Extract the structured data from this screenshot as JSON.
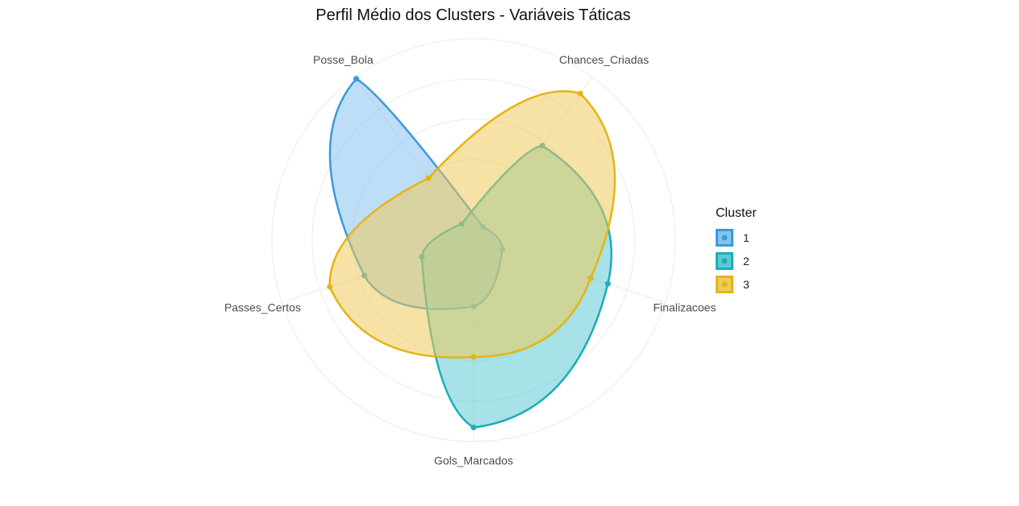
{
  "chart_data": {
    "type": "radar",
    "title": "Perfil Médio dos Clusters - Variáveis Táticas",
    "axes": [
      "Posse_Bola",
      "Chances_Criadas",
      "Finalizacoes",
      "Gols_Marcados",
      "Passes_Certos"
    ],
    "grid": true,
    "rlim": [
      0,
      1
    ],
    "legend": {
      "title": "Cluster",
      "position": "right"
    },
    "series": [
      {
        "name": "1",
        "color": "#3A9AD9",
        "fill": "#87C3EE",
        "values": [
          0.99,
          0.08,
          0.15,
          0.33,
          0.57
        ]
      },
      {
        "name": "2",
        "color": "#1CACBA",
        "fill": "#5DCBD4",
        "values": [
          0.1,
          0.58,
          0.7,
          0.93,
          0.27
        ]
      },
      {
        "name": "3",
        "color": "#E5B416",
        "fill": "#EECB5A",
        "values": [
          0.38,
          0.9,
          0.61,
          0.58,
          0.75
        ]
      }
    ]
  },
  "legend": {
    "title": "Cluster",
    "items": [
      "1",
      "2",
      "3"
    ]
  }
}
